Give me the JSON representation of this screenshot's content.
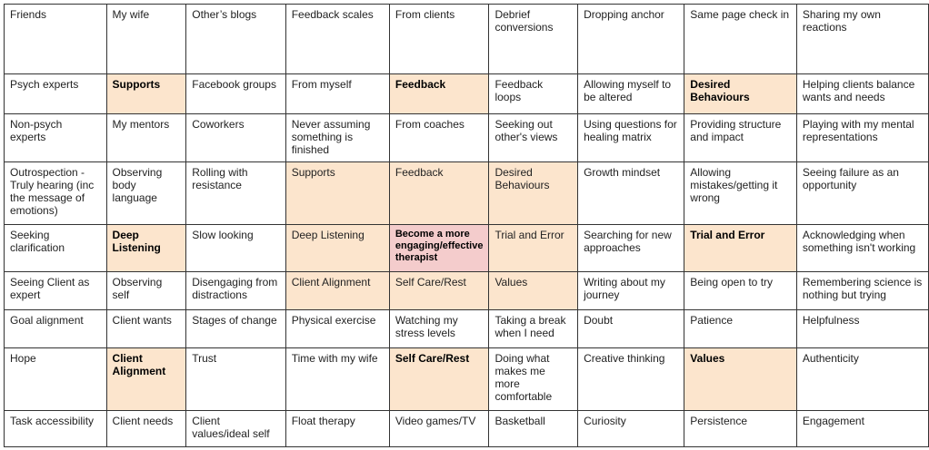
{
  "colors": {
    "highlight": "#fce5cd",
    "center": "#f4cccc"
  },
  "grid": [
    [
      "Friends",
      "My wife",
      "Other’s blogs",
      "Feedback scales",
      "From clients",
      "Debrief conversions",
      "Dropping anchor",
      "Same page check in",
      "Sharing my own reactions"
    ],
    [
      "Psych experts",
      "Supports",
      "Facebook groups",
      "From myself",
      "Feedback",
      "Feedback loops",
      "Allowing myself to be altered",
      "Desired Behaviours",
      "Helping clients balance wants and needs"
    ],
    [
      "Non-psych experts",
      "My mentors",
      "Coworkers",
      "Never assuming something is finished",
      "From coaches",
      "Seeking out other's views",
      "Using questions for healing matrix",
      "Providing structure and impact",
      "Playing with my mental representations"
    ],
    [
      "Outrospection - Truly hearing (inc the message of emotions)",
      "Observing body language",
      "Rolling with resistance",
      "Supports",
      "Feedback",
      "Desired Behaviours",
      "Growth mindset",
      "Allowing mistakes/getting it wrong",
      "Seeing failure as an opportunity"
    ],
    [
      "Seeking clarification",
      "Deep Listening",
      "Slow looking",
      "Deep Listening",
      "Become a more engaging/effective therapist",
      "Trial and Error",
      "Searching for new approaches",
      "Trial and Error",
      "Acknowledging when something isn't working"
    ],
    [
      "Seeing Client as expert",
      "Observing self",
      "Disengaging from distractions",
      "Client Alignment",
      "Self Care/Rest",
      "Values",
      "Writing about my journey",
      "Being open to try",
      "Remembering science is nothing but trying"
    ],
    [
      "Goal alignment",
      "Client wants",
      "Stages of change",
      "Physical exercise",
      "Watching my stress levels",
      "Taking a break when I need",
      "Doubt",
      "Patience",
      "Helpfulness"
    ],
    [
      "Hope",
      "Client Alignment",
      "Trust",
      "Time with my wife",
      "Self Care/Rest",
      "Doing what makes me more comfortable",
      "Creative thinking",
      "Values",
      "Authenticity"
    ],
    [
      "Task accessibility",
      "Client needs",
      "Client values/ideal self",
      "Float therapy",
      "Video games/TV",
      "Basketball",
      "Curiosity",
      "Persistence",
      "Engagement"
    ]
  ]
}
